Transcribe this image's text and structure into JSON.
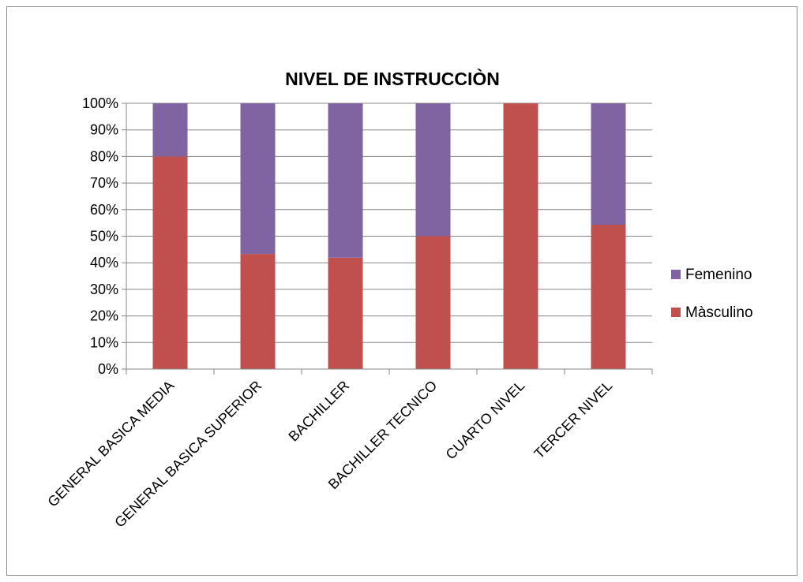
{
  "chart_data": {
    "type": "bar",
    "stacked": true,
    "percent_stacked": true,
    "title": "NIVEL DE INSTRUCCIÒN",
    "xlabel": "",
    "ylabel": "",
    "categories": [
      "GENERAL BASICA MEDIA",
      "GENERAL BASICA SUPERIOR",
      "BACHILLER",
      "BACHILLER TECNICO",
      "CUARTO NIVEL",
      "TERCER NIVEL"
    ],
    "series": [
      {
        "name": "Màsculino",
        "color": "#c0504d",
        "values": [
          80,
          43.3,
          41.9,
          50,
          100,
          54.3
        ]
      },
      {
        "name": "Femenino",
        "color": "#8064a2",
        "values": [
          20,
          56.7,
          58.1,
          50,
          0,
          45.7
        ]
      }
    ],
    "ylim": [
      0,
      100
    ],
    "yticks": [
      "0%",
      "10%",
      "20%",
      "30%",
      "40%",
      "50%",
      "60%",
      "70%",
      "80%",
      "90%",
      "100%"
    ],
    "grid": true,
    "legend_position": "right",
    "legend_order": [
      "Femenino",
      "Màsculino"
    ]
  }
}
